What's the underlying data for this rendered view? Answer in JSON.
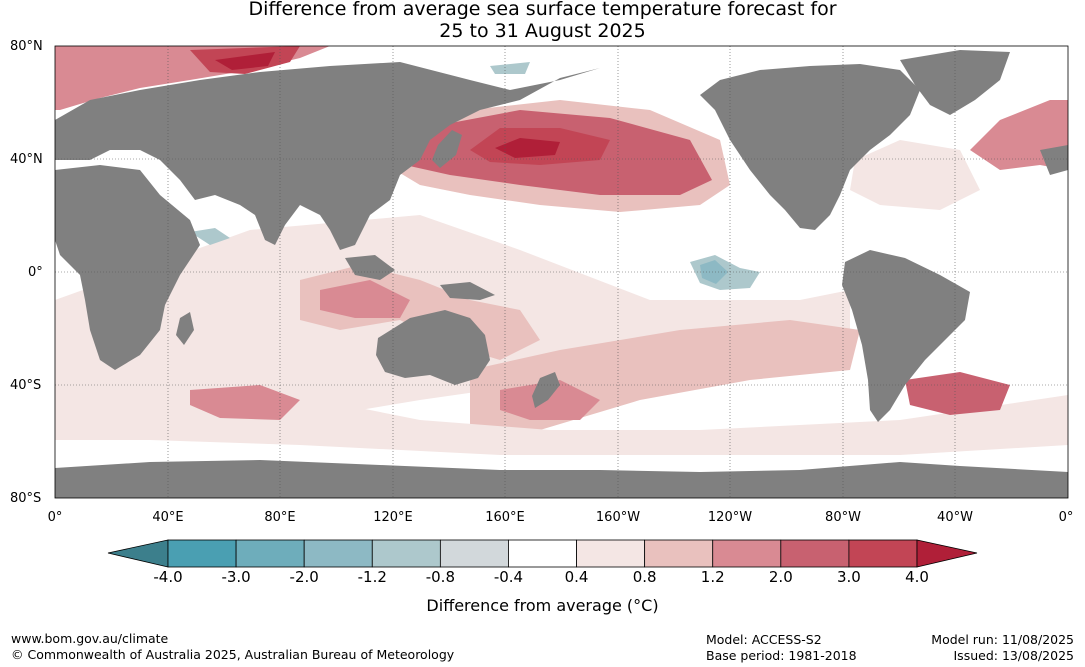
{
  "title": {
    "line1": "Difference from average sea surface temperature forecast for",
    "line2": "25 to 31 August 2025"
  },
  "map": {
    "lat_labels": [
      "80°N",
      "40°N",
      "0°",
      "40°S",
      "80°S"
    ],
    "lon_labels": [
      "0°",
      "40°E",
      "80°E",
      "120°E",
      "160°E",
      "160°W",
      "120°W",
      "80°W",
      "40°W",
      "0°"
    ],
    "land_color": "#808080",
    "ocean_color": "#ffffff"
  },
  "colorbar": {
    "title": "Difference from average (°C)",
    "ticks": [
      "-4.0",
      "-3.0",
      "-2.0",
      "-1.2",
      "-0.8",
      "-0.4",
      "0.4",
      "0.8",
      "1.2",
      "2.0",
      "3.0",
      "4.0"
    ],
    "colors": [
      "#3c7f8c",
      "#4a9fb2",
      "#6eadbb",
      "#8db9c4",
      "#adc8cc",
      "#d2d8db",
      "#ffffff",
      "#f4e6e4",
      "#e9c1be",
      "#d98a93",
      "#c86170",
      "#c24555",
      "#b01f38"
    ]
  },
  "footer": {
    "website": "www.bom.gov.au/climate",
    "copyright": "© Commonwealth of Australia 2025, Australian Bureau of Meteorology",
    "model": "Model: ACCESS-S2",
    "base_period": "Base period: 1981-2018",
    "model_run": "Model run: 11/08/2025",
    "issued": "Issued: 13/08/2025"
  }
}
